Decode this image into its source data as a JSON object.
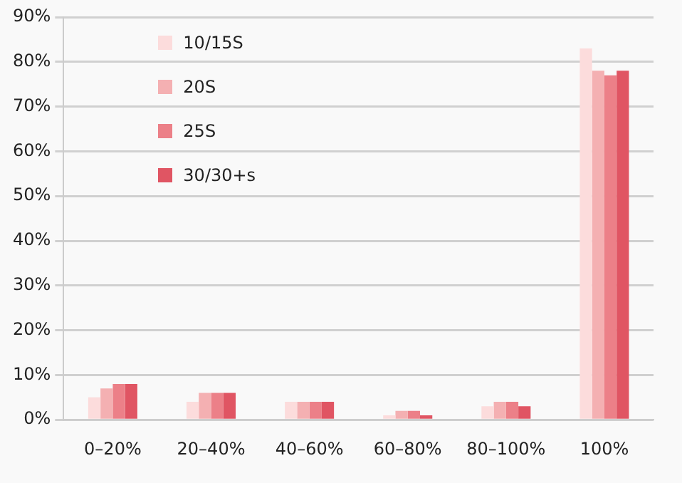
{
  "chart_data": {
    "type": "bar",
    "categories": [
      "0–20%",
      "20–40%",
      "40–60%",
      "60–80%",
      "80–100%",
      "100%"
    ],
    "series": [
      {
        "name": "10/15S",
        "color": "#fcdcdc",
        "values": [
          5,
          4,
          4,
          1,
          3,
          83
        ]
      },
      {
        "name": "20S",
        "color": "#f4b0b2",
        "values": [
          7,
          6,
          4,
          2,
          4,
          78
        ]
      },
      {
        "name": "25S",
        "color": "#ec8088",
        "values": [
          8,
          6,
          4,
          2,
          4,
          77
        ]
      },
      {
        "name": "30/30+s",
        "color": "#e05563",
        "values": [
          8,
          6,
          4,
          1,
          3,
          78
        ]
      }
    ],
    "ylim": [
      0,
      90
    ],
    "yticks": [
      {
        "value": 0,
        "label": "0%"
      },
      {
        "value": 10,
        "label": "10%"
      },
      {
        "value": 20,
        "label": "20%"
      },
      {
        "value": 30,
        "label": "30%"
      },
      {
        "value": 40,
        "label": "40%"
      },
      {
        "value": 50,
        "label": "50%"
      },
      {
        "value": 60,
        "label": "60%"
      },
      {
        "value": 70,
        "label": "70%"
      },
      {
        "value": 80,
        "label": "80%"
      },
      {
        "value": 90,
        "label": "90%"
      }
    ],
    "grid": "y",
    "legend": "top left"
  }
}
